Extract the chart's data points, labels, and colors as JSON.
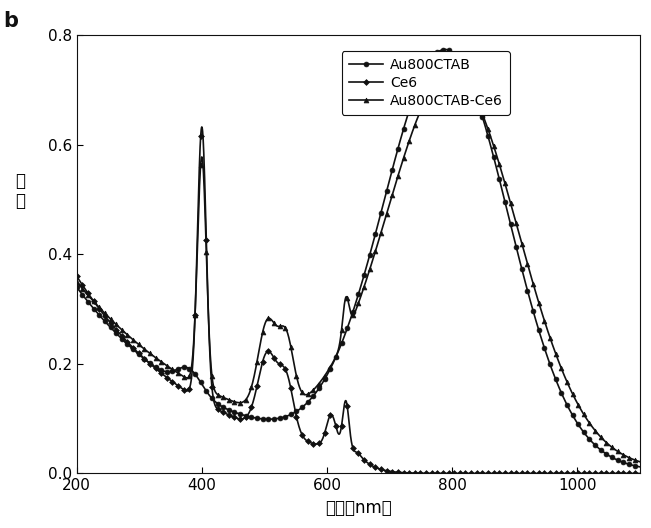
{
  "title": "b",
  "xlabel": "波长（nm）",
  "ylabel": "消\n光",
  "xlim": [
    200,
    1100
  ],
  "ylim": [
    0,
    0.8
  ],
  "yticks": [
    0.0,
    0.2,
    0.4,
    0.6,
    0.8
  ],
  "xticks": [
    200,
    400,
    600,
    800,
    1000
  ],
  "legend": [
    "Au800CTAB",
    "Ce6",
    "Au800CTAB-Ce6"
  ],
  "background_color": "#ffffff"
}
